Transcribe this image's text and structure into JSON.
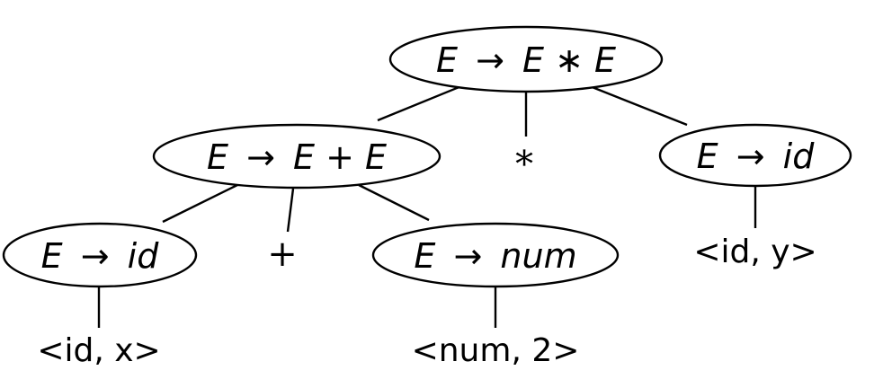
{
  "diagram": {
    "type": "parse-tree",
    "nodes": {
      "root": {
        "lhs": "E",
        "arrow": "→",
        "rhs": "E ∗ E"
      },
      "plus": {
        "lhs": "E",
        "arrow": "→",
        "rhs": "E + E"
      },
      "id_y": {
        "lhs": "E",
        "arrow": "→",
        "rhs": "id"
      },
      "id_x": {
        "lhs": "E",
        "arrow": "→",
        "rhs": "id"
      },
      "num": {
        "lhs": "E",
        "arrow": "→",
        "rhs": "num"
      }
    },
    "terminals": {
      "star": "∗",
      "plus": "+"
    },
    "tokens": {
      "x": "<id, x>",
      "num2": "<num, 2>",
      "y": "<id, y>"
    },
    "edges": [
      [
        "root",
        "plus"
      ],
      [
        "root",
        "star"
      ],
      [
        "root",
        "id_y"
      ],
      [
        "plus",
        "id_x"
      ],
      [
        "plus",
        "plus_sym"
      ],
      [
        "plus",
        "num"
      ],
      [
        "id_x",
        "token_x"
      ],
      [
        "num",
        "token_num2"
      ],
      [
        "id_y",
        "token_y"
      ]
    ]
  }
}
